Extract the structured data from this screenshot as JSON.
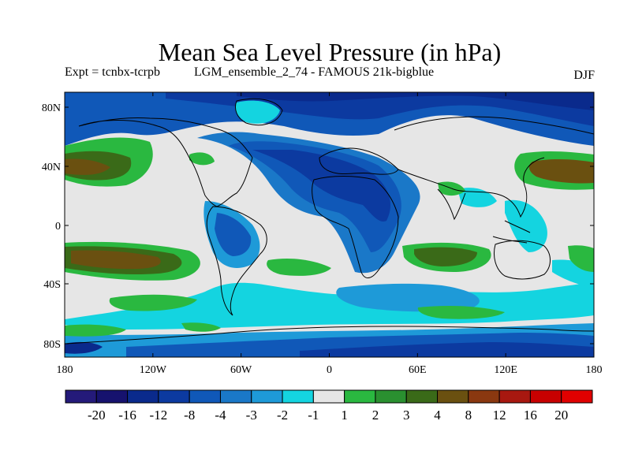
{
  "title": "Mean Sea Level Pressure (in hPa)",
  "experiment": "Expt = tcnbx-tcrpb",
  "run": "LGM_ensemble_2_74 - FAMOUS 21k-bigblue",
  "season": "DJF",
  "lat_ticks": [
    "80N",
    "40N",
    "0",
    "40S",
    "80S"
  ],
  "lon_ticks": [
    "180",
    "120W",
    "60W",
    "0",
    "60E",
    "120E",
    "180"
  ],
  "colorbar": {
    "labels": [
      "-20",
      "-16",
      "-12",
      "-8",
      "-4",
      "-3",
      "-2",
      "-1",
      "1",
      "2",
      "3",
      "4",
      "8",
      "12",
      "16",
      "20"
    ],
    "colors": [
      "#241a7a",
      "#16126e",
      "#0a2a8c",
      "#0c3aa0",
      "#1058b8",
      "#1a78c8",
      "#1e9ad8",
      "#14d4e0",
      "#e6e6e6",
      "#2ab840",
      "#2a9030",
      "#3a6a18",
      "#6a5010",
      "#8a3810",
      "#a81810",
      "#c80000",
      "#e00000"
    ]
  }
}
